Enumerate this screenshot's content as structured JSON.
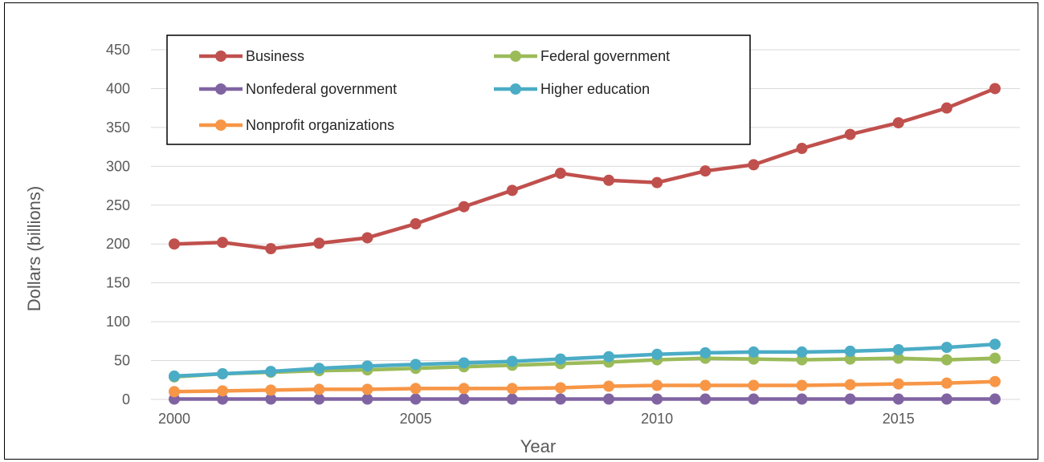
{
  "chart_data": {
    "type": "line",
    "xlabel": "Year",
    "ylabel": "Dollars (billions)",
    "x": [
      2000,
      2001,
      2002,
      2003,
      2004,
      2005,
      2006,
      2007,
      2008,
      2009,
      2010,
      2011,
      2012,
      2013,
      2014,
      2015,
      2016,
      2017
    ],
    "xticks": [
      2000,
      2005,
      2010,
      2015
    ],
    "xlim": [
      2000,
      2017
    ],
    "ylim": [
      0,
      450
    ],
    "yticks": [
      0,
      50,
      100,
      150,
      200,
      250,
      300,
      350,
      400,
      450
    ],
    "grid": "horizontal",
    "legend_position": "top-left",
    "series": [
      {
        "name": "Business",
        "color": "#c0504d",
        "values": [
          200,
          202,
          194,
          201,
          208,
          226,
          248,
          269,
          291,
          282,
          279,
          294,
          302,
          323,
          341,
          356,
          375,
          400
        ]
      },
      {
        "name": "Federal government",
        "color": "#9bbb59",
        "values": [
          29,
          33,
          35,
          37,
          38,
          40,
          42,
          44,
          46,
          48,
          51,
          53,
          52,
          51,
          52,
          53,
          51,
          53
        ]
      },
      {
        "name": "Nonfederal government",
        "color": "#8064a2",
        "values": [
          0.5,
          0.5,
          0.5,
          0.5,
          0.5,
          0.5,
          0.5,
          0.5,
          0.5,
          0.5,
          0.5,
          0.5,
          0.5,
          0.5,
          0.5,
          0.5,
          0.5,
          0.5
        ]
      },
      {
        "name": "Higher education",
        "color": "#4bacc6",
        "values": [
          30,
          33,
          36,
          40,
          43,
          45,
          47,
          49,
          52,
          55,
          58,
          60,
          61,
          61,
          62,
          64,
          67,
          71
        ]
      },
      {
        "name": "Nonprofit organizations",
        "color": "#f79646",
        "values": [
          10,
          11,
          12,
          13,
          13,
          14,
          14,
          14,
          15,
          17,
          18,
          18,
          18,
          18,
          19,
          20,
          21,
          23
        ]
      }
    ]
  }
}
